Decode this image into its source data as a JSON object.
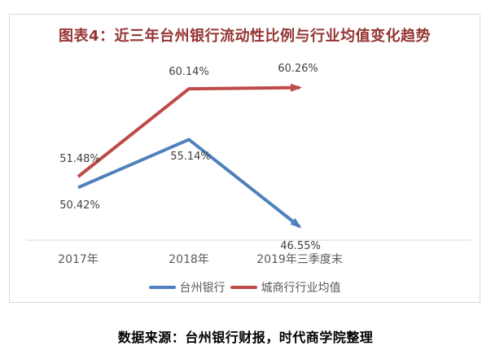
{
  "page": {
    "title": "图表4：近三年台州银行流动性比例与行业均值变化趋势",
    "source_note": "数据来源：台州银行财报，时代商学院整理"
  },
  "chart_data": {
    "type": "line",
    "title": "图表4：近三年台州银行流动性比例与行业均值变化趋势",
    "categories": [
      "2017年",
      "2018年",
      "2019年三季度末"
    ],
    "series": [
      {
        "name": "台州银行",
        "color": "#4F81BD",
        "values": [
          50.42,
          55.14,
          46.55
        ],
        "point_labels": [
          "50.42%",
          "55.14%",
          "46.55%"
        ]
      },
      {
        "name": "城商行行业均值",
        "color": "#BE4B48",
        "values": [
          51.48,
          60.14,
          60.26
        ],
        "point_labels": [
          "51.48%",
          "60.14%",
          "60.26%"
        ]
      }
    ],
    "ylabel": "",
    "xlabel": "",
    "ylim": [
      45,
      64
    ],
    "grid": false,
    "legend_position": "bottom",
    "line_ends": "arrow",
    "baseline_color": "#d9d9d9"
  }
}
